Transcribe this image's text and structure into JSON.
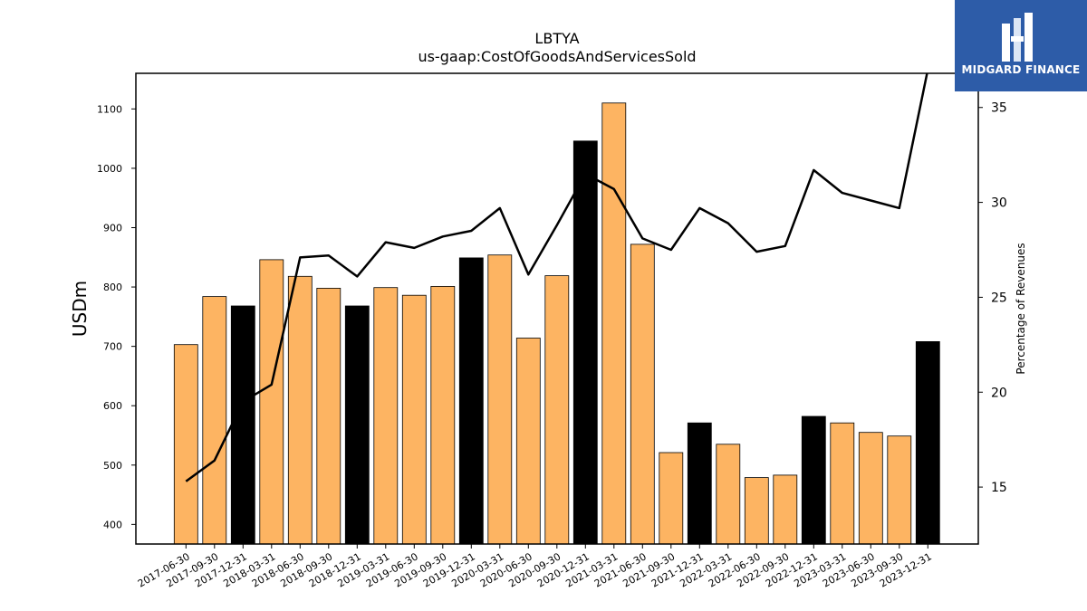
{
  "brand": {
    "name": "MIDGARD FINANCE",
    "color": "#2d5ca8"
  },
  "chart_data": {
    "type": "bar",
    "title": "LBTYA",
    "subtitle": "us-gaap:CostOfGoodsAndServicesSold",
    "ylabel": "USDm",
    "y2label": "Percentage of Revenues",
    "ylim": [
      367,
      1160
    ],
    "y2lim": [
      12.0,
      36.8
    ],
    "yticks": [
      400,
      500,
      600,
      700,
      800,
      900,
      1000,
      1100
    ],
    "y2ticks": [
      15,
      20,
      25,
      30,
      35
    ],
    "categories": [
      "2017-06-30",
      "2017-09-30",
      "2017-12-31",
      "2018-03-31",
      "2018-06-30",
      "2018-09-30",
      "2018-12-31",
      "2019-03-31",
      "2019-06-30",
      "2019-09-30",
      "2019-12-31",
      "2020-03-31",
      "2020-06-30",
      "2020-09-30",
      "2020-12-31",
      "2021-03-31",
      "2021-06-30",
      "2021-09-30",
      "2021-12-31",
      "2022-03-31",
      "2022-06-30",
      "2022-09-30",
      "2022-12-31",
      "2023-03-31",
      "2023-06-30",
      "2023-09-30",
      "2023-12-31"
    ],
    "series": [
      {
        "type": "bar",
        "values": [
          703,
          784,
          768,
          846,
          818,
          798,
          768,
          799,
          786,
          801,
          849,
          854,
          714,
          819,
          1046,
          1110,
          872,
          521,
          571,
          535,
          479,
          483,
          582,
          571,
          555,
          549,
          708
        ],
        "bar_colors": [
          "#fdb462",
          "#fdb462",
          "#000000",
          "#fdb462",
          "#fdb462",
          "#fdb462",
          "#000000",
          "#fdb462",
          "#fdb462",
          "#fdb462",
          "#000000",
          "#fdb462",
          "#fdb462",
          "#fdb462",
          "#000000",
          "#fdb462",
          "#fdb462",
          "#fdb462",
          "#000000",
          "#fdb462",
          "#fdb462",
          "#fdb462",
          "#000000",
          "#fdb462",
          "#fdb462",
          "#fdb462",
          "#000000"
        ]
      },
      {
        "type": "line",
        "axis": "right",
        "color": "#000000",
        "values": [
          15.3,
          16.4,
          19.5,
          20.4,
          27.1,
          27.2,
          26.1,
          27.9,
          27.6,
          28.2,
          28.5,
          29.7,
          26.2,
          28.8,
          31.5,
          30.7,
          28.1,
          27.5,
          29.7,
          28.9,
          27.4,
          27.7,
          31.7,
          30.5,
          30.1,
          29.7,
          37.0
        ]
      }
    ],
    "grid": false,
    "legend": "none"
  }
}
